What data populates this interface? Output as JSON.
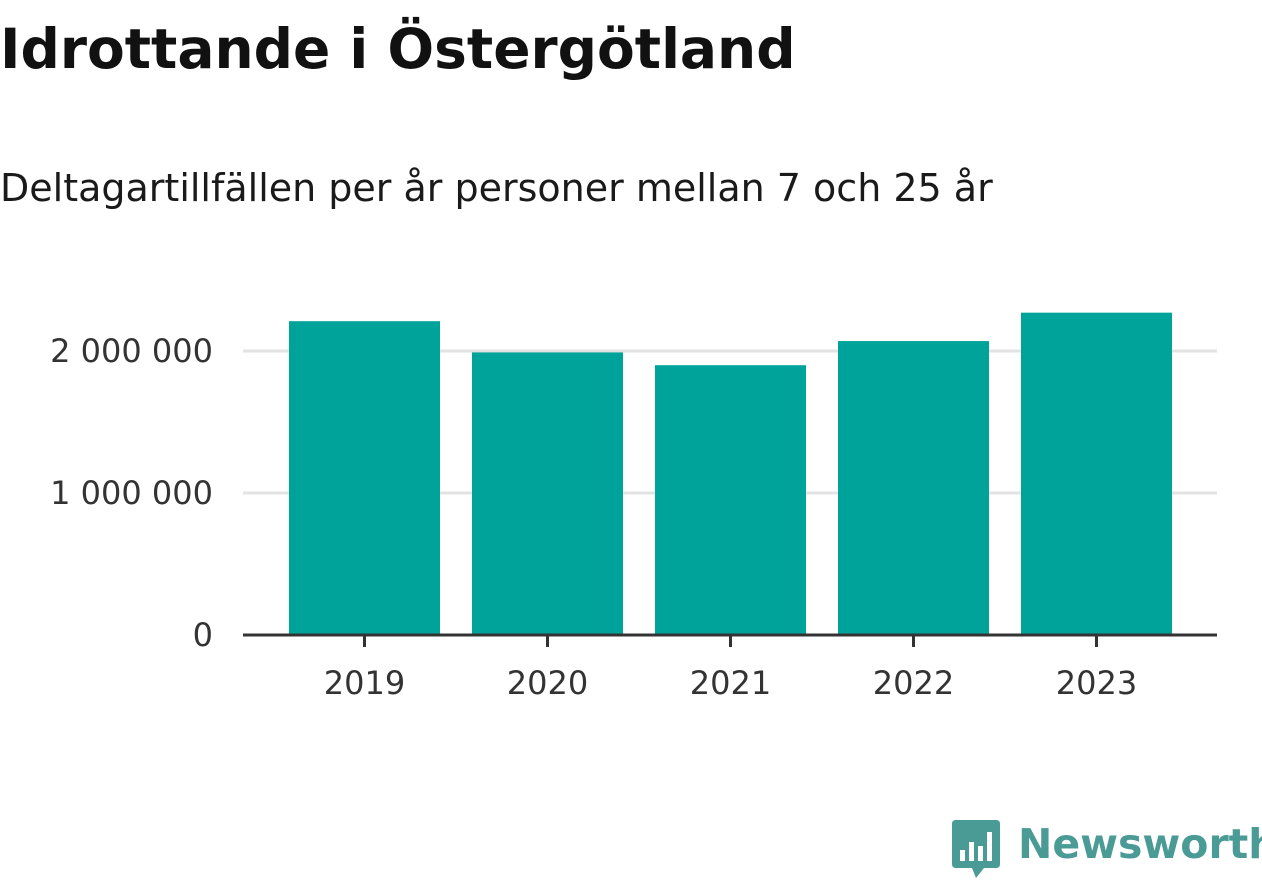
{
  "chart_data": {
    "type": "bar",
    "title": "Idrottande i Östergötland",
    "subtitle": "Deltagartillfällen per år personer mellan 7 och 25 år",
    "xlabel": "",
    "ylabel": "",
    "categories": [
      "2019",
      "2020",
      "2021",
      "2022",
      "2023"
    ],
    "values": [
      2210000,
      1990000,
      1900000,
      2070000,
      2270000
    ],
    "ylim": [
      0,
      2300000
    ],
    "yticks": [
      0,
      1000000,
      2000000
    ],
    "ytick_labels": [
      "0",
      "1 000 000",
      "2 000 000"
    ],
    "grid": true,
    "legend": "none",
    "bar_color": "#00a39a",
    "grid_color": "#e3e3e3",
    "axis_color": "#333333"
  },
  "branding": {
    "name": "Newsworthy",
    "icon": "newsworthy-logo-icon",
    "color": "#4a9a96"
  }
}
